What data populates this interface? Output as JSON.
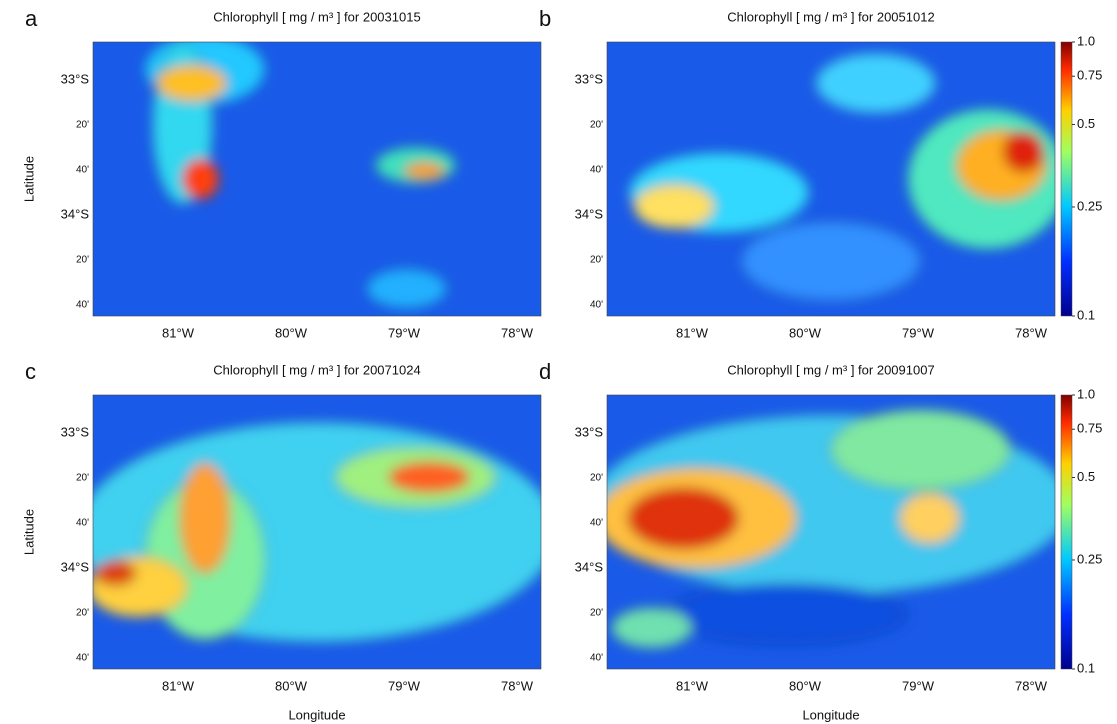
{
  "panels": [
    {
      "letter": "a",
      "title": "Chlorophyll [ mg / m³ ] for 20031015"
    },
    {
      "letter": "b",
      "title": "Chlorophyll [ mg / m³ ] for 20051012"
    },
    {
      "letter": "c",
      "title": "Chlorophyll [ mg / m³ ] for 20071024"
    },
    {
      "letter": "d",
      "title": "Chlorophyll [ mg / m³ ] for 20091007"
    }
  ],
  "y_axis_label": "Latitude",
  "x_axis_label": "Longitude",
  "lat_ticks": [
    "33°S",
    "20'",
    "40'",
    "34°S",
    "20'",
    "40'"
  ],
  "lon_ticks": [
    "81°W",
    "80°W",
    "79°W",
    "78°W"
  ],
  "colorbar": {
    "lim": [
      0.1,
      1
    ],
    "log": true,
    "ticks": [
      0.1,
      0.25,
      0.5,
      0.75,
      {
        "value": 1,
        "label": "1.0"
      }
    ]
  }
}
